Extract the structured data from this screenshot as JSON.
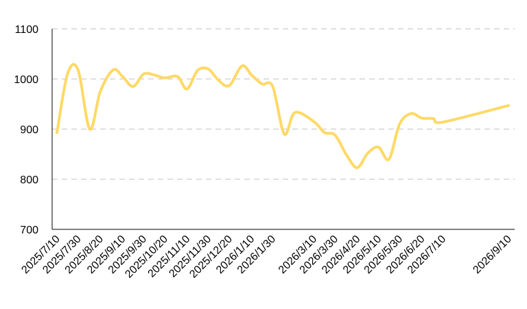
{
  "chart_data": {
    "type": "line",
    "title": "",
    "xlabel": "",
    "ylabel": "",
    "ylim": [
      700,
      1100
    ],
    "yticks": [
      700,
      800,
      900,
      1000,
      1100
    ],
    "grid": "horizontal-dashed",
    "legend": "none",
    "colors": {
      "line": "#FFD966",
      "grid": "#BFBFBF",
      "axis": "#000000"
    },
    "xtick_labels": [
      "2025/7/10",
      "2025/7/30",
      "2025/8/20",
      "2025/9/10",
      "2025/9/30",
      "2025/10/20",
      "2025/11/10",
      "2025/11/30",
      "2025/12/20",
      "2026/1/10",
      "2026/1/30",
      "2026/3/10",
      "2026/3/30",
      "2026/4/20",
      "2026/5/10",
      "2026/5/30",
      "2026/6/20",
      "2026/7/10",
      "2026/9/10"
    ],
    "series": [
      {
        "values": [
          {
            "x": "2025/7/10",
            "y": 893
          },
          {
            "x": "2025/7/20",
            "y": 1010
          },
          {
            "x": "2025/7/30",
            "y": 1018
          },
          {
            "x": "2025/8/10",
            "y": 900
          },
          {
            "x": "2025/8/20",
            "y": 975
          },
          {
            "x": "2025/9/1",
            "y": 1018
          },
          {
            "x": "2025/9/10",
            "y": 1005
          },
          {
            "x": "2025/9/20",
            "y": 985
          },
          {
            "x": "2025/9/30",
            "y": 1010
          },
          {
            "x": "2025/10/10",
            "y": 1008
          },
          {
            "x": "2025/10/20",
            "y": 1002
          },
          {
            "x": "2025/11/1",
            "y": 1005
          },
          {
            "x": "2025/11/10",
            "y": 980
          },
          {
            "x": "2025/11/20",
            "y": 1017
          },
          {
            "x": "2025/11/30",
            "y": 1020
          },
          {
            "x": "2025/12/10",
            "y": 997
          },
          {
            "x": "2025/12/20",
            "y": 987
          },
          {
            "x": "2026/1/1",
            "y": 1026
          },
          {
            "x": "2026/1/10",
            "y": 1008
          },
          {
            "x": "2026/1/20",
            "y": 990
          },
          {
            "x": "2026/1/30",
            "y": 985
          },
          {
            "x": "2026/2/10",
            "y": 890
          },
          {
            "x": "2026/2/20",
            "y": 933
          },
          {
            "x": "2026/3/10",
            "y": 915
          },
          {
            "x": "2026/3/20",
            "y": 893
          },
          {
            "x": "2026/3/30",
            "y": 888
          },
          {
            "x": "2026/4/10",
            "y": 848
          },
          {
            "x": "2026/4/20",
            "y": 823
          },
          {
            "x": "2026/4/30",
            "y": 852
          },
          {
            "x": "2026/5/10",
            "y": 864
          },
          {
            "x": "2026/5/20",
            "y": 840
          },
          {
            "x": "2026/5/30",
            "y": 910
          },
          {
            "x": "2026/6/10",
            "y": 931
          },
          {
            "x": "2026/6/20",
            "y": 922
          },
          {
            "x": "2026/7/1",
            "y": 921
          },
          {
            "x": "2026/7/10",
            "y": 914
          },
          {
            "x": "2026/9/10",
            "y": 947
          }
        ]
      }
    ]
  }
}
